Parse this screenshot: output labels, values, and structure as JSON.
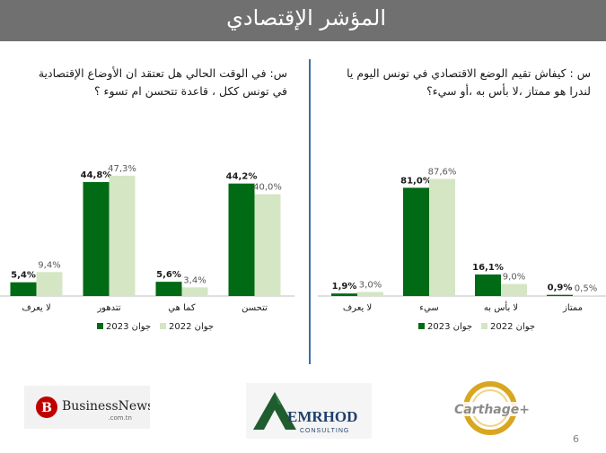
{
  "header": {
    "title": "المؤشر الإقتصادي"
  },
  "questions": {
    "left": "س: في الوقت الحالي هل تعتقد ان الأوضاع الإقتصادية في تونس ككل ، قاعدة تتحسن ام تسوء ؟",
    "right": "س : كيفاش تقيم الوضع الاقتصادي في تونس اليوم يا لندرا هو ممتاز ،لا بأس به ،أو سيء؟"
  },
  "colors": {
    "series_2023": "#006a14",
    "series_2022": "#d4e6c3"
  },
  "chart_data": [
    {
      "type": "bar",
      "categories": [
        "لا يعرف",
        "تتدهور",
        "كما هي",
        "تتحسن"
      ],
      "series": [
        {
          "name": "جوان 2023",
          "values": [
            5.4,
            44.8,
            5.6,
            44.2
          ],
          "labels": [
            "5,4%",
            "44,8%",
            "5,6%",
            "44,2%"
          ]
        },
        {
          "name": "جوان 2022",
          "values": [
            9.4,
            47.3,
            3.4,
            40.0
          ],
          "labels": [
            "9,4%",
            "47,3%",
            "3,4%",
            "40,0%"
          ]
        }
      ],
      "ylim": [
        0,
        55
      ],
      "grid": false,
      "legend": "bottom"
    },
    {
      "type": "bar",
      "categories": [
        "لا يعرف",
        "سيء",
        "لا بأس به",
        "ممتاز"
      ],
      "series": [
        {
          "name": "جوان 2023",
          "values": [
            1.9,
            81.0,
            16.1,
            0.9
          ],
          "labels": [
            "1,9%",
            "81,0%",
            "16,1%",
            "0,9%"
          ]
        },
        {
          "name": "جوان 2022",
          "values": [
            3.0,
            87.6,
            9.0,
            0.5
          ],
          "labels": [
            "3,0%",
            "87,6%",
            "9,0%",
            "0,5%"
          ]
        }
      ],
      "ylim": [
        0,
        100
      ],
      "grid": false,
      "legend": "bottom"
    }
  ],
  "logos": {
    "business_news": {
      "name": "BusinessNews",
      "sub": ".com.tn",
      "letter": "B"
    },
    "emrhod": {
      "name": "EMRHOD",
      "sub": "CONSULTING"
    },
    "carthage": {
      "name": "Carthage+"
    }
  },
  "footer": {
    "page_number": "6"
  }
}
